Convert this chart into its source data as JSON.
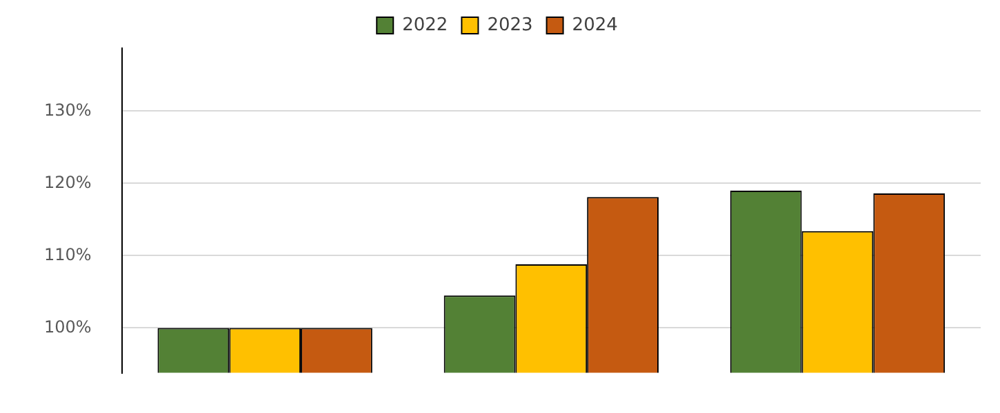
{
  "chart_data": {
    "type": "bar",
    "categories": [
      null,
      null,
      null
    ],
    "series": [
      {
        "name": "2022",
        "color": "#538135",
        "values": [
          100,
          104.5,
          119.0
        ]
      },
      {
        "name": "2023",
        "color": "#ffc000",
        "values": [
          100,
          108.8,
          113.4
        ]
      },
      {
        "name": "2024",
        "color": "#c55a11",
        "values": [
          100,
          118.1,
          118.6
        ]
      }
    ],
    "ylim": [
      93.8,
      138.7
    ],
    "yticks": [
      {
        "value": 100,
        "label": "100%"
      },
      {
        "value": 110,
        "label": "110%"
      },
      {
        "value": 120,
        "label": "120%"
      },
      {
        "value": 130,
        "label": "130%"
      }
    ],
    "grid": "y",
    "legend": "top"
  }
}
